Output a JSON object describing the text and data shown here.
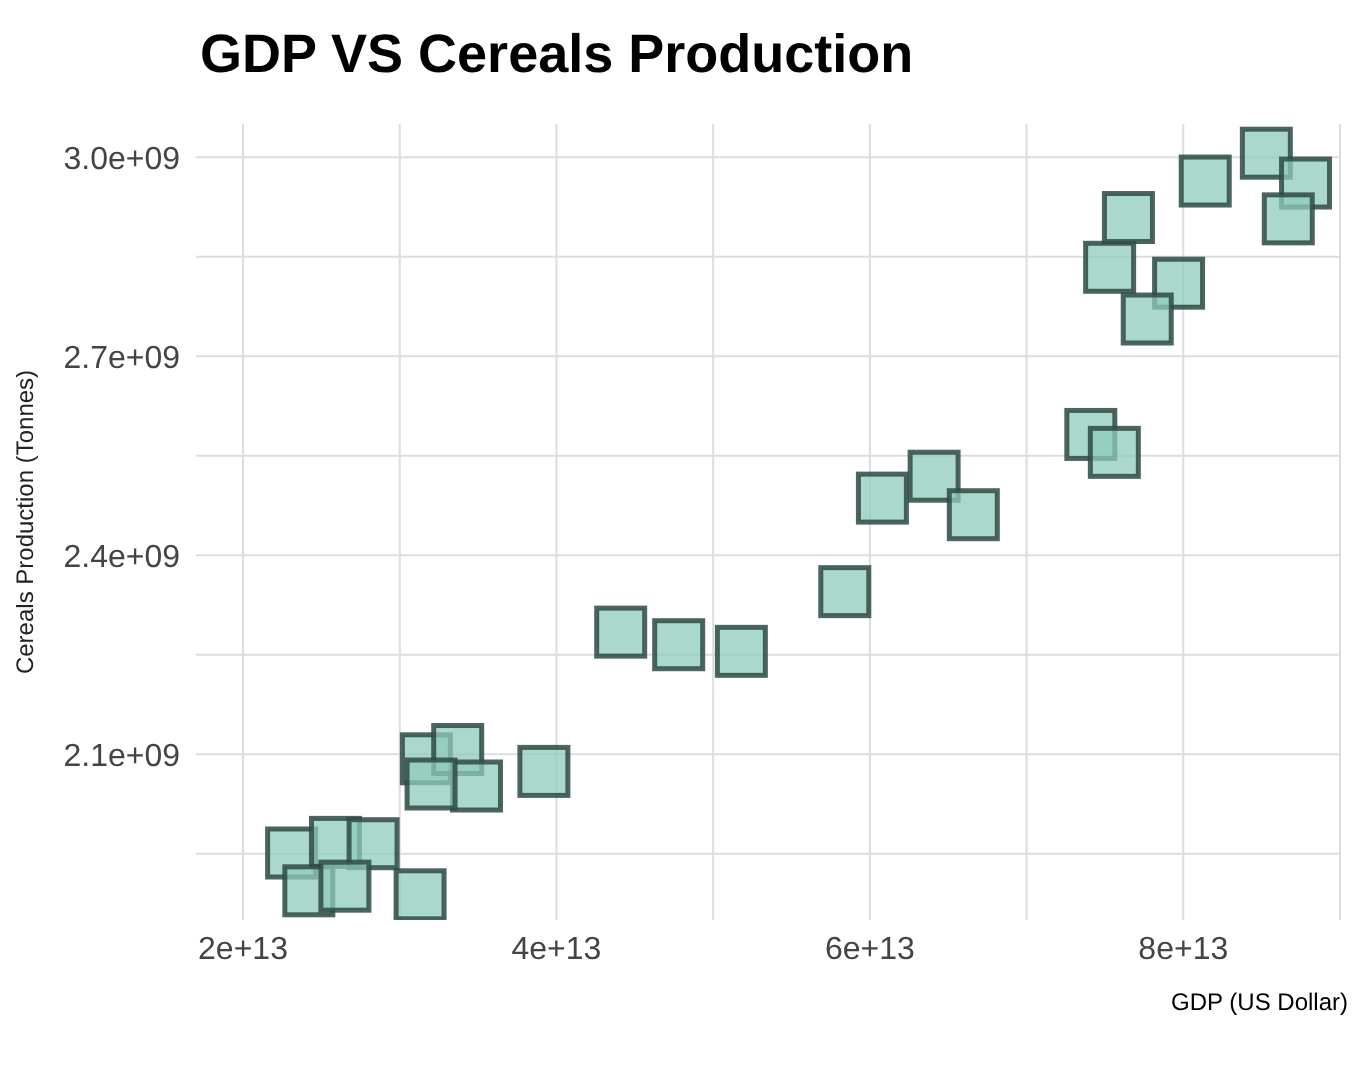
{
  "chart_data": {
    "type": "scatter",
    "title": "GDP VS Cereals Production",
    "xlabel": "GDP (US Dollar)",
    "ylabel": "Cereals Production (Tonnes)",
    "xlim": [
      17000000000000.0,
      90000000000000.0
    ],
    "xticks": [
      {
        "value": 20000000000000.0,
        "label": "2e+13"
      },
      {
        "value": 30000000000000.0,
        "label": null
      },
      {
        "value": 40000000000000.0,
        "label": "4e+13"
      },
      {
        "value": 50000000000000.0,
        "label": null
      },
      {
        "value": 60000000000000.0,
        "label": "6e+13"
      },
      {
        "value": 70000000000000.0,
        "label": null
      },
      {
        "value": 80000000000000.0,
        "label": "8e+13"
      },
      {
        "value": 90000000000000.0,
        "label": null
      }
    ],
    "ylim": [
      1850000000.0,
      3050000000.0
    ],
    "yticks": [
      {
        "value": 1950000000.0,
        "label": null
      },
      {
        "value": 2100000000.0,
        "label": "2.1e+09"
      },
      {
        "value": 2250000000.0,
        "label": null
      },
      {
        "value": 2400000000.0,
        "label": "2.4e+09"
      },
      {
        "value": 2550000000.0,
        "label": null
      },
      {
        "value": 2700000000.0,
        "label": "2.7e+09"
      },
      {
        "value": 2850000000.0,
        "label": null
      },
      {
        "value": 3000000000.0,
        "label": "3.0e+09"
      }
    ],
    "grid": true,
    "marker": "square",
    "series": [
      {
        "color": "#8fcbbb",
        "x": [
          23100000000000.0,
          25900000000000.0,
          28300000000000.0,
          24200000000000.0,
          26500000000000.0,
          31300000000000.0,
          31700000000000.0,
          33700000000000.0,
          34900000000000.0,
          32000000000000.0,
          39200000000000.0,
          44100000000000.0,
          47800000000000.0,
          51800000000000.0,
          58400000000000.0,
          60800000000000.0,
          64100000000000.0,
          66600000000000.0,
          74100000000000.0,
          75600000000000.0,
          75300000000000.0,
          76500000000000.0,
          79700000000000.0,
          77700000000000.0,
          81400000000000.0,
          85300000000000.0,
          87800000000000.0,
          86700000000000.0
        ],
        "values": [
          1951000000.0,
          1967000000.0,
          1965000000.0,
          1894000000.0,
          1901000000.0,
          1888000000.0,
          2093000000.0,
          2107000000.0,
          2052000000.0,
          2055000000.0,
          2074000000.0,
          2284000000.0,
          2265000000.0,
          2255000000.0,
          2345000000.0,
          2486000000.0,
          2519000000.0,
          2461000000.0,
          2582000000.0,
          2555000000.0,
          2834000000.0,
          2909000000.0,
          2810000000.0,
          2756000000.0,
          2964000000.0,
          3006000000.0,
          2961000000.0,
          2907000000.0
        ]
      }
    ]
  }
}
